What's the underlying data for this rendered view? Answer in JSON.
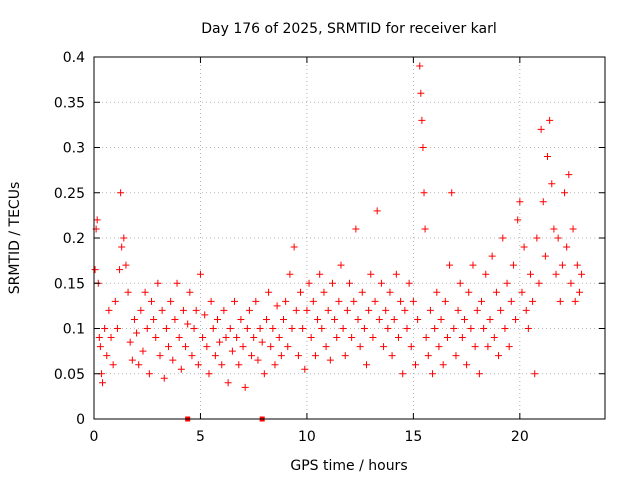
{
  "chart_data": {
    "type": "scatter",
    "title": "Day 176 of 2025, SRMTID for receiver karl",
    "xlabel": "GPS time / hours",
    "ylabel": "SRMTID / TECUs",
    "xlim": [
      0,
      24
    ],
    "ylim": [
      0,
      0.4
    ],
    "x_ticks": [
      "0",
      "5",
      "10",
      "15",
      "20"
    ],
    "x_tick_values": [
      0,
      5,
      10,
      15,
      20
    ],
    "y_ticks": [
      "0",
      "0.05",
      "0.1",
      "0.15",
      "0.2",
      "0.25",
      "0.3",
      "0.35",
      "0.4"
    ],
    "y_tick_values": [
      0,
      0.05,
      0.1,
      0.15,
      0.2,
      0.25,
      0.3,
      0.35,
      0.4
    ],
    "grid": true,
    "marker": "+",
    "color": "#ff0000",
    "series": [
      {
        "name": "",
        "points": [
          [
            0.05,
            0.165
          ],
          [
            0.1,
            0.21
          ],
          [
            0.15,
            0.22
          ],
          [
            0.2,
            0.15
          ],
          [
            0.25,
            0.09
          ],
          [
            0.3,
            0.08
          ],
          [
            0.35,
            0.05
          ],
          [
            0.4,
            0.04
          ],
          [
            0.5,
            0.1
          ],
          [
            0.6,
            0.07
          ],
          [
            0.7,
            0.12
          ],
          [
            0.8,
            0.09
          ],
          [
            0.9,
            0.06
          ],
          [
            1.0,
            0.13
          ],
          [
            1.1,
            0.1
          ],
          [
            1.2,
            0.165
          ],
          [
            1.25,
            0.25
          ],
          [
            1.3,
            0.19
          ],
          [
            1.4,
            0.2
          ],
          [
            1.5,
            0.17
          ],
          [
            1.6,
            0.14
          ],
          [
            1.7,
            0.085
          ],
          [
            1.8,
            0.065
          ],
          [
            1.9,
            0.11
          ],
          [
            2.0,
            0.095
          ],
          [
            2.1,
            0.06
          ],
          [
            2.2,
            0.12
          ],
          [
            2.3,
            0.075
          ],
          [
            2.4,
            0.14
          ],
          [
            2.5,
            0.1
          ],
          [
            2.6,
            0.05
          ],
          [
            2.7,
            0.13
          ],
          [
            2.8,
            0.11
          ],
          [
            2.9,
            0.09
          ],
          [
            3.0,
            0.15
          ],
          [
            3.1,
            0.07
          ],
          [
            3.2,
            0.12
          ],
          [
            3.3,
            0.045
          ],
          [
            3.4,
            0.1
          ],
          [
            3.5,
            0.08
          ],
          [
            3.6,
            0.13
          ],
          [
            3.7,
            0.065
          ],
          [
            3.8,
            0.11
          ],
          [
            3.9,
            0.15
          ],
          [
            4.0,
            0.09
          ],
          [
            4.1,
            0.055
          ],
          [
            4.2,
            0.12
          ],
          [
            4.3,
            0.08
          ],
          [
            4.4,
            0.105
          ],
          [
            4.5,
            0.14
          ],
          [
            4.6,
            0.07
          ],
          [
            4.7,
            0.1
          ],
          [
            4.8,
            0.12
          ],
          [
            4.9,
            0.06
          ],
          [
            5.0,
            0.16
          ],
          [
            5.1,
            0.09
          ],
          [
            5.2,
            0.115
          ],
          [
            5.3,
            0.08
          ],
          [
            5.4,
            0.05
          ],
          [
            5.5,
            0.13
          ],
          [
            5.6,
            0.1
          ],
          [
            5.7,
            0.07
          ],
          [
            5.8,
            0.11
          ],
          [
            5.9,
            0.085
          ],
          [
            6.0,
            0.06
          ],
          [
            6.1,
            0.12
          ],
          [
            6.2,
            0.09
          ],
          [
            6.3,
            0.04
          ],
          [
            6.4,
            0.1
          ],
          [
            6.5,
            0.075
          ],
          [
            6.6,
            0.13
          ],
          [
            6.7,
            0.09
          ],
          [
            6.8,
            0.06
          ],
          [
            6.9,
            0.11
          ],
          [
            7.0,
            0.08
          ],
          [
            7.1,
            0.035
          ],
          [
            7.2,
            0.1
          ],
          [
            7.3,
            0.12
          ],
          [
            7.4,
            0.07
          ],
          [
            7.5,
            0.09
          ],
          [
            7.6,
            0.13
          ],
          [
            7.7,
            0.065
          ],
          [
            7.8,
            0.1
          ],
          [
            7.9,
            0.085
          ],
          [
            8.0,
            0.05
          ],
          [
            8.1,
            0.11
          ],
          [
            8.2,
            0.14
          ],
          [
            8.3,
            0.08
          ],
          [
            8.4,
            0.1
          ],
          [
            8.5,
            0.06
          ],
          [
            8.6,
            0.125
          ],
          [
            8.7,
            0.09
          ],
          [
            8.8,
            0.07
          ],
          [
            8.9,
            0.11
          ],
          [
            9.0,
            0.13
          ],
          [
            9.1,
            0.08
          ],
          [
            9.2,
            0.16
          ],
          [
            9.3,
            0.1
          ],
          [
            9.4,
            0.19
          ],
          [
            9.5,
            0.12
          ],
          [
            9.6,
            0.07
          ],
          [
            9.7,
            0.14
          ],
          [
            9.8,
            0.1
          ],
          [
            9.9,
            0.055
          ],
          [
            10.0,
            0.12
          ],
          [
            10.1,
            0.15
          ],
          [
            10.2,
            0.09
          ],
          [
            10.3,
            0.13
          ],
          [
            10.4,
            0.07
          ],
          [
            10.5,
            0.11
          ],
          [
            10.6,
            0.16
          ],
          [
            10.7,
            0.1
          ],
          [
            10.8,
            0.14
          ],
          [
            10.9,
            0.08
          ],
          [
            11.0,
            0.12
          ],
          [
            11.1,
            0.065
          ],
          [
            11.2,
            0.15
          ],
          [
            11.3,
            0.11
          ],
          [
            11.4,
            0.09
          ],
          [
            11.5,
            0.13
          ],
          [
            11.6,
            0.17
          ],
          [
            11.7,
            0.1
          ],
          [
            11.8,
            0.07
          ],
          [
            11.9,
            0.12
          ],
          [
            12.0,
            0.15
          ],
          [
            12.1,
            0.09
          ],
          [
            12.2,
            0.13
          ],
          [
            12.3,
            0.21
          ],
          [
            12.4,
            0.11
          ],
          [
            12.5,
            0.08
          ],
          [
            12.6,
            0.14
          ],
          [
            12.7,
            0.1
          ],
          [
            12.8,
            0.06
          ],
          [
            12.9,
            0.12
          ],
          [
            13.0,
            0.16
          ],
          [
            13.1,
            0.09
          ],
          [
            13.2,
            0.13
          ],
          [
            13.3,
            0.23
          ],
          [
            13.4,
            0.11
          ],
          [
            13.5,
            0.15
          ],
          [
            13.6,
            0.08
          ],
          [
            13.7,
            0.12
          ],
          [
            13.8,
            0.1
          ],
          [
            13.9,
            0.14
          ],
          [
            14.0,
            0.07
          ],
          [
            14.1,
            0.11
          ],
          [
            14.2,
            0.16
          ],
          [
            14.3,
            0.09
          ],
          [
            14.4,
            0.13
          ],
          [
            14.5,
            0.05
          ],
          [
            14.6,
            0.12
          ],
          [
            14.7,
            0.1
          ],
          [
            14.8,
            0.15
          ],
          [
            14.9,
            0.08
          ],
          [
            15.0,
            0.13
          ],
          [
            15.1,
            0.06
          ],
          [
            15.2,
            0.11
          ],
          [
            15.3,
            0.39
          ],
          [
            15.35,
            0.36
          ],
          [
            15.4,
            0.33
          ],
          [
            15.45,
            0.3
          ],
          [
            15.5,
            0.25
          ],
          [
            15.55,
            0.21
          ],
          [
            15.6,
            0.09
          ],
          [
            15.7,
            0.07
          ],
          [
            15.8,
            0.12
          ],
          [
            15.9,
            0.05
          ],
          [
            16.0,
            0.1
          ],
          [
            16.1,
            0.14
          ],
          [
            16.2,
            0.08
          ],
          [
            16.3,
            0.11
          ],
          [
            16.4,
            0.06
          ],
          [
            16.5,
            0.13
          ],
          [
            16.6,
            0.09
          ],
          [
            16.7,
            0.17
          ],
          [
            16.8,
            0.25
          ],
          [
            16.9,
            0.1
          ],
          [
            17.0,
            0.07
          ],
          [
            17.1,
            0.12
          ],
          [
            17.2,
            0.15
          ],
          [
            17.3,
            0.09
          ],
          [
            17.4,
            0.11
          ],
          [
            17.5,
            0.06
          ],
          [
            17.6,
            0.14
          ],
          [
            17.7,
            0.1
          ],
          [
            17.8,
            0.17
          ],
          [
            17.9,
            0.08
          ],
          [
            18.0,
            0.12
          ],
          [
            18.1,
            0.05
          ],
          [
            18.2,
            0.13
          ],
          [
            18.3,
            0.1
          ],
          [
            18.4,
            0.16
          ],
          [
            18.5,
            0.08
          ],
          [
            18.6,
            0.11
          ],
          [
            18.7,
            0.18
          ],
          [
            18.8,
            0.09
          ],
          [
            18.9,
            0.14
          ],
          [
            19.0,
            0.07
          ],
          [
            19.1,
            0.12
          ],
          [
            19.2,
            0.2
          ],
          [
            19.3,
            0.1
          ],
          [
            19.4,
            0.15
          ],
          [
            19.5,
            0.08
          ],
          [
            19.6,
            0.13
          ],
          [
            19.7,
            0.17
          ],
          [
            19.8,
            0.11
          ],
          [
            19.9,
            0.22
          ],
          [
            20.0,
            0.24
          ],
          [
            20.1,
            0.14
          ],
          [
            20.2,
            0.19
          ],
          [
            20.3,
            0.12
          ],
          [
            20.4,
            0.1
          ],
          [
            20.5,
            0.16
          ],
          [
            20.6,
            0.13
          ],
          [
            20.7,
            0.05
          ],
          [
            20.8,
            0.2
          ],
          [
            20.9,
            0.15
          ],
          [
            21.0,
            0.32
          ],
          [
            21.1,
            0.24
          ],
          [
            21.2,
            0.18
          ],
          [
            21.3,
            0.29
          ],
          [
            21.4,
            0.33
          ],
          [
            21.5,
            0.26
          ],
          [
            21.6,
            0.21
          ],
          [
            21.7,
            0.16
          ],
          [
            21.8,
            0.2
          ],
          [
            21.9,
            0.13
          ],
          [
            22.0,
            0.17
          ],
          [
            22.1,
            0.25
          ],
          [
            22.2,
            0.19
          ],
          [
            22.3,
            0.27
          ],
          [
            22.4,
            0.15
          ],
          [
            22.5,
            0.21
          ],
          [
            22.6,
            0.13
          ],
          [
            22.7,
            0.17
          ],
          [
            22.8,
            0.14
          ],
          [
            22.9,
            0.16
          ]
        ]
      }
    ],
    "axis_markers": [
      4.4,
      7.9
    ]
  }
}
